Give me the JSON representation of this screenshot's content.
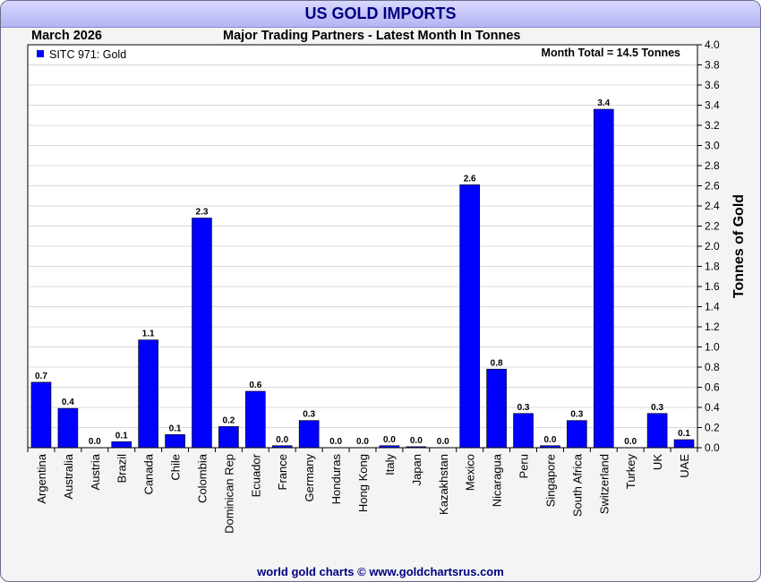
{
  "header": {
    "title": "US GOLD IMPORTS",
    "month": "March 2026",
    "subtitle": "Major Trading Partners - Latest Month In Tonnes"
  },
  "footer": {
    "credit": "world gold charts © www.goldchartsrus.com"
  },
  "colors": {
    "bar": "#0000ff",
    "title": "#000080",
    "plot_bg": "#ffffff"
  },
  "chart_data": {
    "type": "bar",
    "title": "US GOLD IMPORTS",
    "subtitle": "Major Trading Partners - Latest Month In Tonnes",
    "ylabel": "Tonnes of Gold",
    "ylim": [
      0,
      4.0
    ],
    "ytick_step": 0.2,
    "grid": true,
    "legend": {
      "position": "top-left",
      "entries": [
        "SITC 971: Gold"
      ]
    },
    "annotation": "Month Total = 14.5 Tonnes",
    "categories": [
      "Argentina",
      "Australia",
      "Austria",
      "Brazil",
      "Canada",
      "Chile",
      "Colombia",
      "Dominican Rep",
      "Ecuador",
      "France",
      "Germany",
      "Honduras",
      "Hong Kong",
      "Italy",
      "Japan",
      "Kazakhstan",
      "Mexico",
      "Nicaragua",
      "Peru",
      "Singapore",
      "South Africa",
      "Switzerland",
      "Turkey",
      "UK",
      "UAE"
    ],
    "values": [
      0.65,
      0.39,
      0.0,
      0.06,
      1.07,
      0.13,
      2.28,
      0.21,
      0.56,
      0.02,
      0.27,
      0.0,
      0.0,
      0.02,
      0.01,
      0.0,
      2.61,
      0.78,
      0.34,
      0.02,
      0.27,
      3.36,
      0.0,
      0.34,
      0.08
    ],
    "labels": [
      "0.7",
      "0.4",
      "0.0",
      "0.1",
      "1.1",
      "0.1",
      "2.3",
      "0.2",
      "0.6",
      "0.0",
      "0.3",
      "0.0",
      "0.0",
      "0.0",
      "0.0",
      "0.0",
      "2.6",
      "0.8",
      "0.3",
      "0.0",
      "0.3",
      "3.4",
      "0.0",
      "0.3",
      "0.1"
    ]
  }
}
